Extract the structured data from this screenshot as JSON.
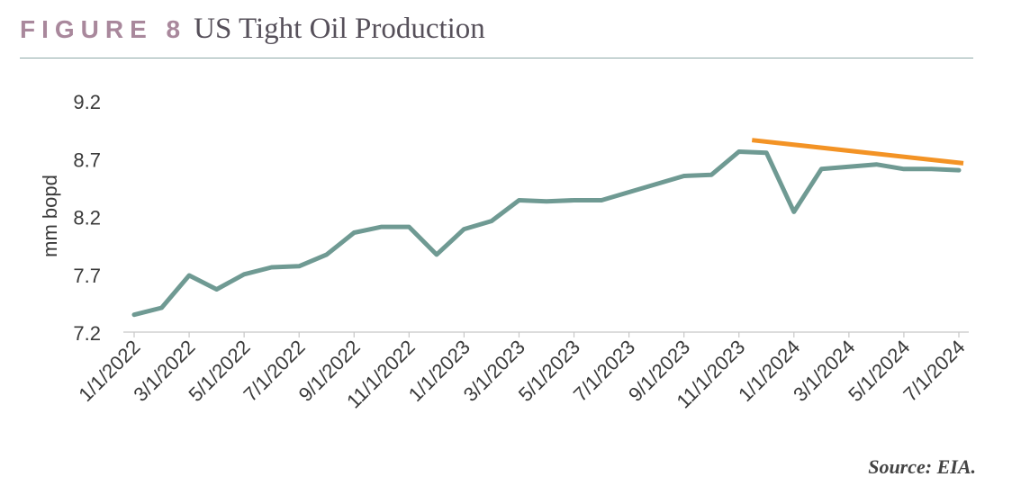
{
  "header": {
    "figure_label": "FIGURE 8",
    "title": "US Tight Oil Production"
  },
  "source": "Source: EIA.",
  "colors": {
    "series": "#6f9a93",
    "trend": "#f39325",
    "figure_label": "#a9889c",
    "rule": "#8fa9a8"
  },
  "chart_data": {
    "type": "line",
    "ylabel": "mm bopd",
    "xlabel": "",
    "ylim": [
      7.2,
      9.2
    ],
    "yticks": [
      7.2,
      7.7,
      8.2,
      8.7,
      9.2
    ],
    "ytick_labels": [
      "7.2",
      "7.7",
      "8.2",
      "8.7",
      "9.2"
    ],
    "grid": false,
    "x": [
      "1/1/2022",
      "2/1/2022",
      "3/1/2022",
      "4/1/2022",
      "5/1/2022",
      "6/1/2022",
      "7/1/2022",
      "8/1/2022",
      "9/1/2022",
      "10/1/2022",
      "11/1/2022",
      "12/1/2022",
      "1/1/2023",
      "2/1/2023",
      "3/1/2023",
      "4/1/2023",
      "5/1/2023",
      "6/1/2023",
      "7/1/2023",
      "8/1/2023",
      "9/1/2023",
      "10/1/2023",
      "11/1/2023",
      "12/1/2023",
      "1/1/2024",
      "2/1/2024",
      "3/1/2024",
      "4/1/2024",
      "5/1/2024",
      "6/1/2024",
      "7/1/2024"
    ],
    "xtick_labels": [
      "1/1/2022",
      "3/1/2022",
      "5/1/2022",
      "7/1/2022",
      "9/1/2022",
      "11/1/2022",
      "1/1/2023",
      "3/1/2023",
      "5/1/2023",
      "7/1/2023",
      "9/1/2023",
      "11/1/2023",
      "1/1/2024",
      "3/1/2024",
      "5/1/2024",
      "7/1/2024"
    ],
    "series": [
      {
        "values": [
          7.35,
          7.41,
          7.69,
          7.57,
          7.7,
          7.76,
          7.77,
          7.87,
          8.06,
          8.11,
          8.11,
          7.87,
          8.09,
          8.16,
          8.34,
          8.33,
          8.34,
          8.34,
          8.41,
          8.48,
          8.55,
          8.56,
          8.76,
          8.75,
          8.24,
          8.61,
          8.63,
          8.65,
          8.61,
          8.61,
          8.6
        ]
      }
    ],
    "trendline": {
      "x": [
        "12/1/2023",
        "7/1/2024"
      ],
      "values": [
        8.86,
        8.66
      ]
    }
  }
}
